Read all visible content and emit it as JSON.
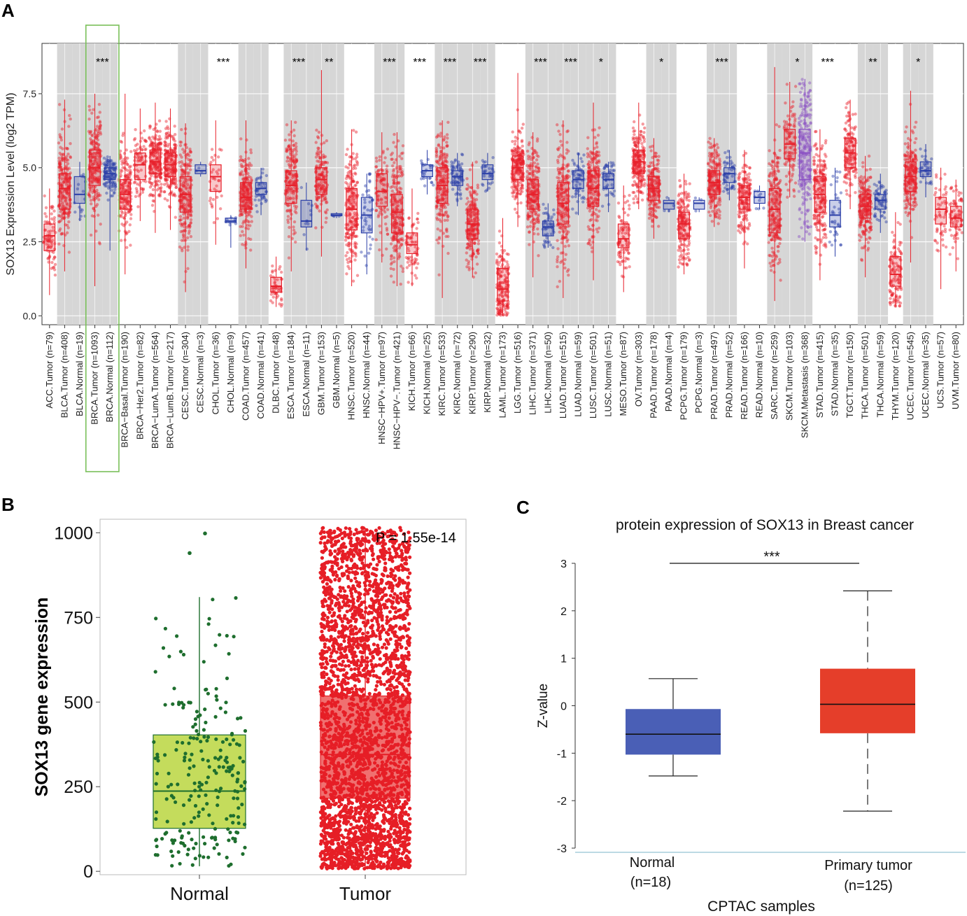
{
  "panels": {
    "a": "A",
    "b": "B",
    "c": "C"
  },
  "chart_data": [
    {
      "id": "A",
      "type": "box",
      "ylabel": "SOX13 Expression Level (log2 TPM)",
      "ylim": [
        -0.3,
        9.2
      ],
      "yticks": [
        0.0,
        2.5,
        5.0,
        7.5
      ],
      "ytick_labels": [
        "0.0",
        "2.5",
        "5.0",
        "7.5"
      ],
      "highlight": "BRCA.Tumor / BRCA.Normal",
      "groups": [
        {
          "label": "ACC.Tumor (n=79)",
          "kind": "tumor",
          "median": 2.7,
          "q1": 2.2,
          "q3": 3.1,
          "lo": 0.7,
          "hi": 4.3,
          "shaded": false
        },
        {
          "label": "BLCA.Tumor (n=408)",
          "kind": "tumor",
          "median": 4.3,
          "q1": 3.6,
          "q3": 4.8,
          "lo": 1.5,
          "hi": 7.3,
          "shaded": true
        },
        {
          "label": "BLCA.Normal (n=19)",
          "kind": "normal",
          "median": 4.1,
          "q1": 3.8,
          "q3": 4.7,
          "lo": 3.2,
          "hi": 5.2,
          "shaded": true
        },
        {
          "label": "BRCA.Tumor (n=1093)",
          "kind": "tumor",
          "median": 5.0,
          "q1": 4.4,
          "q3": 5.6,
          "lo": 1.0,
          "hi": 7.5,
          "shaded": true,
          "sig": "***"
        },
        {
          "label": "BRCA.Normal (n=112)",
          "kind": "normal",
          "median": 4.8,
          "q1": 4.6,
          "q3": 5.0,
          "lo": 2.2,
          "hi": 5.4,
          "shaded": true
        },
        {
          "label": "BRCA−Basal.Tumor (n=190)",
          "kind": "tumor",
          "median": 4.1,
          "q1": 3.6,
          "q3": 4.6,
          "lo": 1.4,
          "hi": 7.5,
          "shaded": false
        },
        {
          "label": "BRCA−Her2.Tumor (n=82)",
          "kind": "tumor",
          "median": 5.1,
          "q1": 4.6,
          "q3": 5.5,
          "lo": 3.2,
          "hi": 7.0,
          "shaded": false
        },
        {
          "label": "BRCA−LumA.Tumor (n=564)",
          "kind": "tumor",
          "median": 5.2,
          "q1": 4.8,
          "q3": 5.6,
          "lo": 2.8,
          "hi": 7.2,
          "shaded": false
        },
        {
          "label": "BRCA−LumB.Tumor (n=217)",
          "kind": "tumor",
          "median": 5.1,
          "q1": 4.7,
          "q3": 5.5,
          "lo": 2.9,
          "hi": 7.0,
          "shaded": false
        },
        {
          "label": "CESC.Tumor (n=304)",
          "kind": "tumor",
          "median": 4.1,
          "q1": 3.5,
          "q3": 4.7,
          "lo": 0.8,
          "hi": 6.5,
          "shaded": true
        },
        {
          "label": "CESC.Normal (n=3)",
          "kind": "normal",
          "median": 4.9,
          "q1": 4.8,
          "q3": 5.1,
          "lo": 4.7,
          "hi": 5.2,
          "shaded": true
        },
        {
          "label": "CHOL.Tumor (n=36)",
          "kind": "tumor",
          "median": 4.7,
          "q1": 4.2,
          "q3": 5.1,
          "lo": 2.4,
          "hi": 6.6,
          "shaded": false,
          "sig": "***"
        },
        {
          "label": "CHOL.Normal (n=9)",
          "kind": "normal",
          "median": 3.2,
          "q1": 3.15,
          "q3": 3.3,
          "lo": 2.3,
          "hi": 3.4,
          "shaded": false
        },
        {
          "label": "COAD.Tumor (n=457)",
          "kind": "tumor",
          "median": 4.0,
          "q1": 3.6,
          "q3": 4.5,
          "lo": 1.6,
          "hi": 6.6,
          "shaded": true
        },
        {
          "label": "COAD.Normal (n=41)",
          "kind": "normal",
          "median": 4.3,
          "q1": 4.1,
          "q3": 4.5,
          "lo": 3.4,
          "hi": 5.0,
          "shaded": true
        },
        {
          "label": "DLBC.Tumor (n=48)",
          "kind": "tumor",
          "median": 1.0,
          "q1": 0.8,
          "q3": 1.3,
          "lo": 0.3,
          "hi": 2.0,
          "shaded": false
        },
        {
          "label": "ESCA.Tumor (n=184)",
          "kind": "tumor",
          "median": 4.4,
          "q1": 3.8,
          "q3": 4.9,
          "lo": 1.5,
          "hi": 6.6,
          "shaded": true,
          "sig": "***"
        },
        {
          "label": "ESCA.Normal (n=11)",
          "kind": "normal",
          "median": 3.2,
          "q1": 3.0,
          "q3": 3.9,
          "lo": 2.2,
          "hi": 4.5,
          "shaded": true
        },
        {
          "label": "GBM.Tumor (n=153)",
          "kind": "tumor",
          "median": 4.6,
          "q1": 4.1,
          "q3": 5.0,
          "lo": 2.0,
          "hi": 8.3,
          "shaded": true,
          "sig": "**"
        },
        {
          "label": "GBM.Normal (n=5)",
          "kind": "normal",
          "median": 3.4,
          "q1": 3.38,
          "q3": 3.45,
          "lo": 3.3,
          "hi": 3.5,
          "shaded": true
        },
        {
          "label": "HNSC.Tumor (n=520)",
          "kind": "tumor",
          "median": 3.6,
          "q1": 2.9,
          "q3": 4.3,
          "lo": 1.0,
          "hi": 6.3,
          "shaded": false
        },
        {
          "label": "HNSC.Normal (n=44)",
          "kind": "normal",
          "median": 3.4,
          "q1": 2.8,
          "q3": 4.0,
          "lo": 1.4,
          "hi": 4.8,
          "shaded": false
        },
        {
          "label": "HNSC−HPV+.Tumor (n=97)",
          "kind": "tumor",
          "median": 4.2,
          "q1": 3.7,
          "q3": 4.8,
          "lo": 1.8,
          "hi": 6.2,
          "shaded": true,
          "sig": "***"
        },
        {
          "label": "HNSC−HPV−.Tumor (n=421)",
          "kind": "tumor",
          "median": 3.5,
          "q1": 2.8,
          "q3": 4.1,
          "lo": 1.0,
          "hi": 6.2,
          "shaded": true
        },
        {
          "label": "KICH.Tumor (n=66)",
          "kind": "tumor",
          "median": 2.4,
          "q1": 2.1,
          "q3": 2.8,
          "lo": 1.0,
          "hi": 4.3,
          "shaded": false,
          "sig": "***"
        },
        {
          "label": "KICH.Normal (n=25)",
          "kind": "normal",
          "median": 4.9,
          "q1": 4.7,
          "q3": 5.1,
          "lo": 4.1,
          "hi": 5.6,
          "shaded": false
        },
        {
          "label": "KIRC.Tumor (n=533)",
          "kind": "tumor",
          "median": 4.4,
          "q1": 3.8,
          "q3": 5.0,
          "lo": 0.6,
          "hi": 6.6,
          "shaded": true,
          "sig": "***"
        },
        {
          "label": "KIRC.Normal (n=72)",
          "kind": "normal",
          "median": 4.7,
          "q1": 4.4,
          "q3": 4.9,
          "lo": 3.7,
          "hi": 5.5,
          "shaded": true
        },
        {
          "label": "KIRP.Tumor (n=290)",
          "kind": "tumor",
          "median": 3.1,
          "q1": 2.6,
          "q3": 3.6,
          "lo": 1.3,
          "hi": 5.2,
          "shaded": true,
          "sig": "***"
        },
        {
          "label": "KIRP.Normal (n=32)",
          "kind": "normal",
          "median": 4.8,
          "q1": 4.6,
          "q3": 5.1,
          "lo": 4.2,
          "hi": 5.5,
          "shaded": true
        },
        {
          "label": "LAML.Tumor (n=173)",
          "kind": "tumor",
          "median": 0.9,
          "q1": 0.5,
          "q3": 1.6,
          "lo": 0.0,
          "hi": 3.3,
          "shaded": false
        },
        {
          "label": "LGG.Tumor (n=516)",
          "kind": "tumor",
          "median": 5.0,
          "q1": 4.6,
          "q3": 5.4,
          "lo": 3.0,
          "hi": 8.2,
          "shaded": false
        },
        {
          "label": "LIHC.Tumor (n=371)",
          "kind": "tumor",
          "median": 4.1,
          "q1": 3.6,
          "q3": 4.6,
          "lo": 1.3,
          "hi": 6.2,
          "shaded": true,
          "sig": "***"
        },
        {
          "label": "LIHC.Normal (n=50)",
          "kind": "normal",
          "median": 3.0,
          "q1": 2.7,
          "q3": 3.2,
          "lo": 2.3,
          "hi": 3.8,
          "shaded": true
        },
        {
          "label": "LUAD.Tumor (n=515)",
          "kind": "tumor",
          "median": 3.8,
          "q1": 3.1,
          "q3": 4.5,
          "lo": 0.6,
          "hi": 6.6,
          "shaded": true,
          "sig": "***"
        },
        {
          "label": "LUAD.Normal (n=59)",
          "kind": "normal",
          "median": 4.6,
          "q1": 4.3,
          "q3": 4.9,
          "lo": 3.4,
          "hi": 5.5,
          "shaded": true
        },
        {
          "label": "LUSC.Tumor (n=501)",
          "kind": "tumor",
          "median": 4.3,
          "q1": 3.7,
          "q3": 4.9,
          "lo": 1.2,
          "hi": 7.2,
          "shaded": true,
          "sig": "*"
        },
        {
          "label": "LUSC.Normal (n=51)",
          "kind": "normal",
          "median": 4.6,
          "q1": 4.3,
          "q3": 4.8,
          "lo": 3.5,
          "hi": 5.2,
          "shaded": true
        },
        {
          "label": "MESO.Tumor (n=87)",
          "kind": "tumor",
          "median": 2.6,
          "q1": 2.3,
          "q3": 3.1,
          "lo": 0.8,
          "hi": 4.4,
          "shaded": false
        },
        {
          "label": "OV.Tumor (n=303)",
          "kind": "tumor",
          "median": 5.2,
          "q1": 4.8,
          "q3": 5.6,
          "lo": 3.6,
          "hi": 7.2,
          "shaded": false
        },
        {
          "label": "PAAD.Tumor (n=178)",
          "kind": "tumor",
          "median": 4.3,
          "q1": 3.9,
          "q3": 4.7,
          "lo": 2.6,
          "hi": 6.0,
          "shaded": true,
          "sig": "*"
        },
        {
          "label": "PAAD.Normal (n=4)",
          "kind": "normal",
          "median": 3.8,
          "q1": 3.6,
          "q3": 3.9,
          "lo": 3.5,
          "hi": 4.0,
          "shaded": true
        },
        {
          "label": "PCPG.Tumor (n=179)",
          "kind": "tumor",
          "median": 3.1,
          "q1": 2.6,
          "q3": 3.5,
          "lo": 1.4,
          "hi": 4.8,
          "shaded": false
        },
        {
          "label": "PCPG.Normal (n=3)",
          "kind": "normal",
          "median": 3.8,
          "q1": 3.6,
          "q3": 3.9,
          "lo": 3.5,
          "hi": 4.0,
          "shaded": false
        },
        {
          "label": "PRAD.Tumor (n=497)",
          "kind": "tumor",
          "median": 4.5,
          "q1": 4.1,
          "q3": 4.9,
          "lo": 3.0,
          "hi": 6.0,
          "shaded": true,
          "sig": "***"
        },
        {
          "label": "PRAD.Normal (n=52)",
          "kind": "normal",
          "median": 4.8,
          "q1": 4.5,
          "q3": 5.0,
          "lo": 3.9,
          "hi": 5.6,
          "shaded": true
        },
        {
          "label": "READ.Tumor (n=166)",
          "kind": "tumor",
          "median": 4.0,
          "q1": 3.6,
          "q3": 4.4,
          "lo": 1.6,
          "hi": 5.6,
          "shaded": false
        },
        {
          "label": "READ.Normal (n=10)",
          "kind": "normal",
          "median": 4.0,
          "q1": 3.8,
          "q3": 4.2,
          "lo": 3.6,
          "hi": 4.4,
          "shaded": false
        },
        {
          "label": "SARC.Tumor (n=259)",
          "kind": "tumor",
          "median": 3.6,
          "q1": 2.8,
          "q3": 4.3,
          "lo": 0.5,
          "hi": 8.4,
          "shaded": true
        },
        {
          "label": "SKCM.Tumor (n=103)",
          "kind": "tumor",
          "median": 5.8,
          "q1": 5.3,
          "q3": 6.3,
          "lo": 4.0,
          "hi": 7.9,
          "shaded": true,
          "sig": "*"
        },
        {
          "label": "SKCM.Metastasis (n=368)",
          "kind": "metastasis",
          "median": 5.5,
          "q1": 4.6,
          "q3": 6.3,
          "lo": 2.5,
          "hi": 8.0,
          "shaded": true
        },
        {
          "label": "STAD.Tumor (n=415)",
          "kind": "tumor",
          "median": 4.1,
          "q1": 3.5,
          "q3": 4.7,
          "lo": 1.2,
          "hi": 6.3,
          "shaded": false,
          "sig": "***"
        },
        {
          "label": "STAD.Normal (n=35)",
          "kind": "normal",
          "median": 3.4,
          "q1": 3.0,
          "q3": 3.9,
          "lo": 2.0,
          "hi": 5.0,
          "shaded": false
        },
        {
          "label": "TGCT.Tumor (n=150)",
          "kind": "tumor",
          "median": 5.5,
          "q1": 5.0,
          "q3": 6.0,
          "lo": 3.6,
          "hi": 7.3,
          "shaded": false
        },
        {
          "label": "THCA.Tumor (n=501)",
          "kind": "tumor",
          "median": 3.7,
          "q1": 3.3,
          "q3": 4.1,
          "lo": 1.3,
          "hi": 5.4,
          "shaded": true,
          "sig": "**"
        },
        {
          "label": "THCA.Normal (n=59)",
          "kind": "normal",
          "median": 3.9,
          "q1": 3.6,
          "q3": 4.1,
          "lo": 2.8,
          "hi": 4.8,
          "shaded": true
        },
        {
          "label": "THYM.Tumor (n=120)",
          "kind": "tumor",
          "median": 1.4,
          "q1": 1.0,
          "q3": 2.0,
          "lo": 0.3,
          "hi": 3.5,
          "shaded": false
        },
        {
          "label": "UCEC.Tumor (n=545)",
          "kind": "tumor",
          "median": 4.7,
          "q1": 4.2,
          "q3": 5.2,
          "lo": 1.8,
          "hi": 7.6,
          "shaded": true,
          "sig": "*"
        },
        {
          "label": "UCEC.Normal (n=35)",
          "kind": "normal",
          "median": 4.9,
          "q1": 4.7,
          "q3": 5.2,
          "lo": 4.0,
          "hi": 5.8,
          "shaded": true
        },
        {
          "label": "UCS.Tumor (n=57)",
          "kind": "tumor",
          "median": 3.6,
          "q1": 3.1,
          "q3": 4.0,
          "lo": 0.9,
          "hi": 5.0,
          "shaded": false
        },
        {
          "label": "UVM.Tumor (n=80)",
          "kind": "tumor",
          "median": 3.3,
          "q1": 3.0,
          "q3": 3.7,
          "lo": 1.5,
          "hi": 4.6,
          "shaded": false
        }
      ],
      "colors": {
        "tumor": "#e8202a",
        "normal": "#2b3fa8",
        "metastasis": "#8a4fc4",
        "shade": "#d6d6d6",
        "highlight": "#7ac05a"
      }
    },
    {
      "id": "B",
      "type": "box",
      "ylabel": "SOX13 gene expression",
      "ylim": [
        -10,
        1040
      ],
      "yticks": [
        0,
        250,
        500,
        750,
        1000
      ],
      "ytick_labels": [
        "0",
        "250",
        "500",
        "750",
        "1000"
      ],
      "annotation": "P = 1.55e-14",
      "groups": [
        {
          "label": "Normal",
          "median": 237,
          "q1": 127,
          "q3": 403,
          "lo": 15,
          "hi": 810,
          "n_points": 230,
          "color": "#1e6e2e",
          "fill": "#c4dc5c"
        },
        {
          "label": "Tumor",
          "median": 345,
          "q1": 216,
          "q3": 518,
          "lo": 8,
          "hi": 1015,
          "n_points": 3200,
          "color": "#e61e26",
          "fill": "#f07070"
        }
      ]
    },
    {
      "id": "C",
      "type": "box",
      "title": "protein expression of SOX13 in Breast cancer",
      "xlabel": "CPTAC samples",
      "ylabel": "Z-value",
      "ylim": [
        -3,
        3
      ],
      "yticks": [
        -3,
        -2,
        -1,
        0,
        1,
        2,
        3
      ],
      "ytick_labels": [
        "-3",
        "-2",
        "-1",
        "0",
        "1",
        "2",
        "3"
      ],
      "significance": "***",
      "groups": [
        {
          "label": "Normal",
          "n_label": "(n=18)",
          "median": -0.6,
          "q1": -1.03,
          "q3": -0.07,
          "lo": -1.48,
          "hi": 0.57,
          "color": "#4a5fb6"
        },
        {
          "label": "Primary tumor",
          "n_label": "(n=125)",
          "median": 0.03,
          "q1": -0.58,
          "q3": 0.78,
          "lo": -2.22,
          "hi": 2.42,
          "color": "#e53e2a"
        }
      ]
    }
  ]
}
